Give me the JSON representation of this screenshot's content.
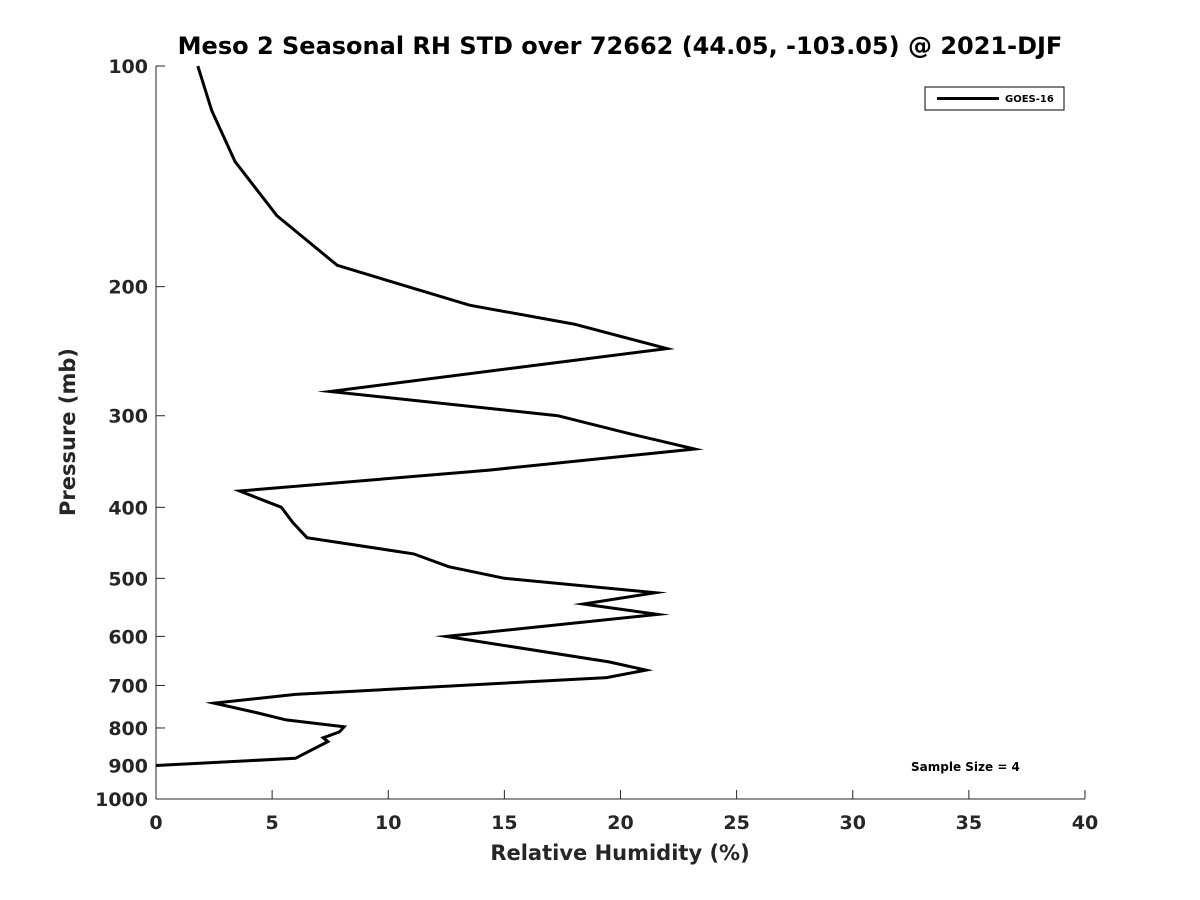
{
  "chart_data": {
    "type": "line",
    "title": "Meso 2 Seasonal RH STD over 72662 (44.05, -103.05) @ 2021-DJF",
    "xlabel": "Relative Humidity (%)",
    "ylabel": "Pressure (mb)",
    "xlim": [
      0,
      40
    ],
    "ylim": [
      100,
      1000
    ],
    "y_scale": "log",
    "y_reversed": true,
    "x_ticks": [
      0,
      5,
      10,
      15,
      20,
      25,
      30,
      35,
      40
    ],
    "y_ticks": [
      100,
      200,
      300,
      400,
      500,
      600,
      700,
      800,
      900,
      1000
    ],
    "grid": false,
    "legend_position": "top-right",
    "annotation": "Sample Size = 4",
    "series": [
      {
        "name": "GOES-16",
        "color": "#000000",
        "x": [
          1.8,
          2.4,
          3.4,
          5.2,
          7.8,
          13.5,
          18.0,
          22.0,
          15.5,
          7.5,
          17.3,
          20.5,
          23.2,
          14.3,
          3.6,
          5.4,
          5.9,
          6.5,
          11.1,
          12.6,
          15.0,
          21.5,
          18.4,
          21.6,
          12.5,
          19.5,
          21.1,
          19.4,
          6.0,
          2.5,
          4.3,
          5.6,
          8.1,
          7.9,
          7.2,
          7.4,
          6.0,
          0.0
        ],
        "y": [
          100,
          115,
          135,
          160,
          187,
          212,
          225,
          243,
          258,
          278,
          300,
          318,
          333,
          356,
          380,
          400,
          420,
          440,
          463,
          482,
          500,
          523,
          542,
          560,
          600,
          650,
          667,
          683,
          720,
          740,
          762,
          780,
          797,
          810,
          825,
          835,
          880,
          900
        ]
      }
    ]
  }
}
